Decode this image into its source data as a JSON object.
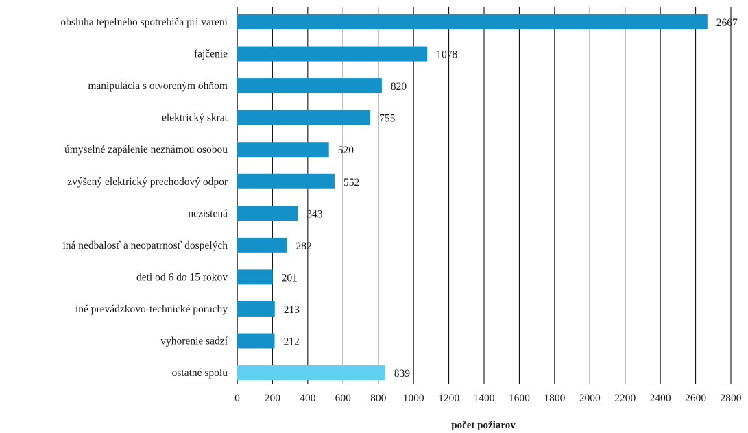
{
  "chart_data": {
    "type": "bar",
    "orientation": "horizontal",
    "categories": [
      "obsluha tepelného spotrebiča pri varení",
      "fajčenie",
      "manipulácia s otvoreným ohňom",
      "elektrický skrat",
      "úmyselné zapálenie neznámou osobou",
      "zvýšený elektrický prechodový odpor",
      "nezistená",
      "iná nedbalosť a neopatrnosť dospelých",
      "deti od 6 do 15 rokov",
      "iné prevádzkovo-technické poruchy",
      "vyhorenie sadzí",
      "ostatné spolu"
    ],
    "values": [
      2667,
      1078,
      820,
      755,
      520,
      552,
      343,
      282,
      201,
      213,
      212,
      839
    ],
    "value_labels": [
      "2667",
      "1078",
      "820",
      "755",
      "520",
      "552",
      "343",
      "282",
      "201",
      "213",
      "212",
      "839"
    ],
    "colors": [
      "#1591c9",
      "#1591c9",
      "#1591c9",
      "#1591c9",
      "#1591c9",
      "#1591c9",
      "#1591c9",
      "#1591c9",
      "#1591c9",
      "#1591c9",
      "#1591c9",
      "#5fd0ef"
    ],
    "xlabel": "počet požiarov",
    "xlim": [
      0,
      2800
    ],
    "xticks": [
      0,
      200,
      400,
      600,
      800,
      1000,
      1200,
      1400,
      1600,
      1800,
      2000,
      2200,
      2400,
      2600,
      2800
    ],
    "grid": "vertical",
    "gridline_color": "#111111"
  }
}
